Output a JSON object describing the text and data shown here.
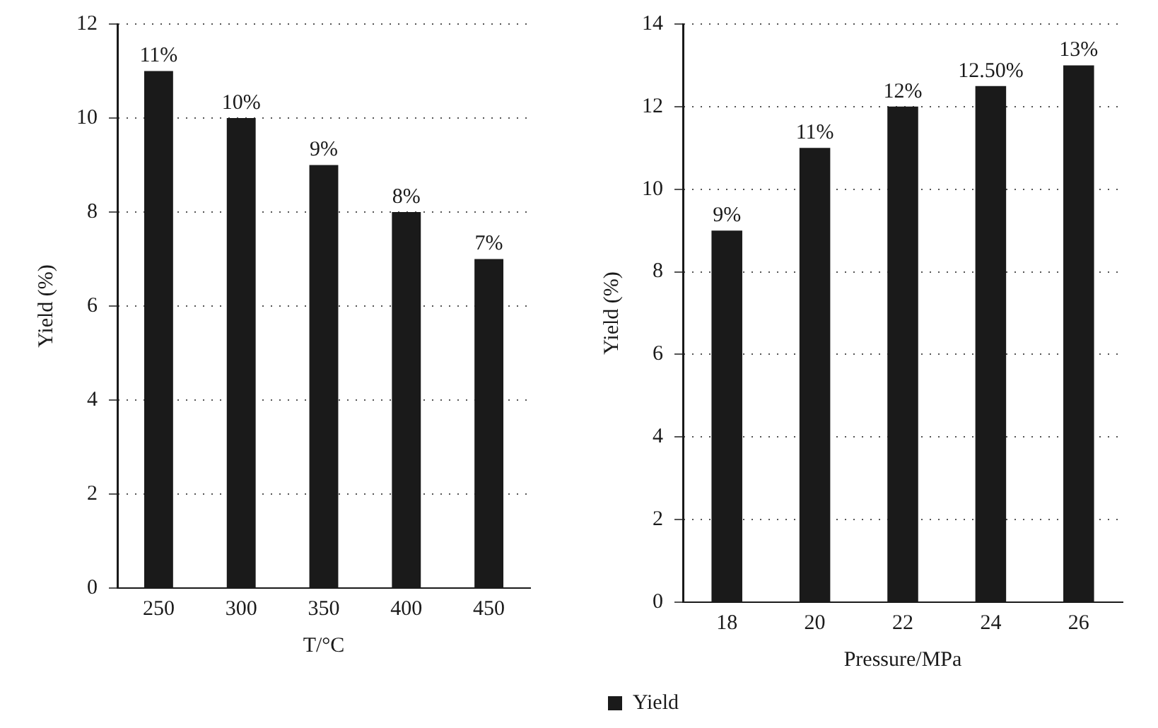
{
  "chart_data": [
    {
      "type": "bar",
      "xlabel": "T/°C",
      "ylabel": "Yield (%)",
      "categories": [
        "250",
        "300",
        "350",
        "400",
        "450"
      ],
      "values": [
        11,
        10,
        9,
        8,
        7
      ],
      "color": "#1a1a1a",
      "value_labels": [
        "11%",
        "10%",
        "9%",
        "8%",
        "7%"
      ],
      "ylim": [
        0,
        12
      ],
      "yticks": [
        0,
        2,
        4,
        6,
        8,
        10,
        12
      ],
      "grid": "y"
    },
    {
      "type": "bar",
      "xlabel": "Pressure/MPa",
      "ylabel": "Yield (%)",
      "categories": [
        "18",
        "20",
        "22",
        "24",
        "26"
      ],
      "series": [
        {
          "name": "Yield",
          "color": "#1a1a1a",
          "values": [
            9,
            11,
            12,
            12.5,
            13
          ],
          "value_labels": [
            "9%",
            "11%",
            "12%",
            "12.50%",
            "13%"
          ]
        }
      ],
      "ylim": [
        0,
        14
      ],
      "yticks": [
        0,
        2,
        4,
        6,
        8,
        10,
        12,
        14
      ],
      "grid": "y",
      "legend": "bottom"
    }
  ]
}
